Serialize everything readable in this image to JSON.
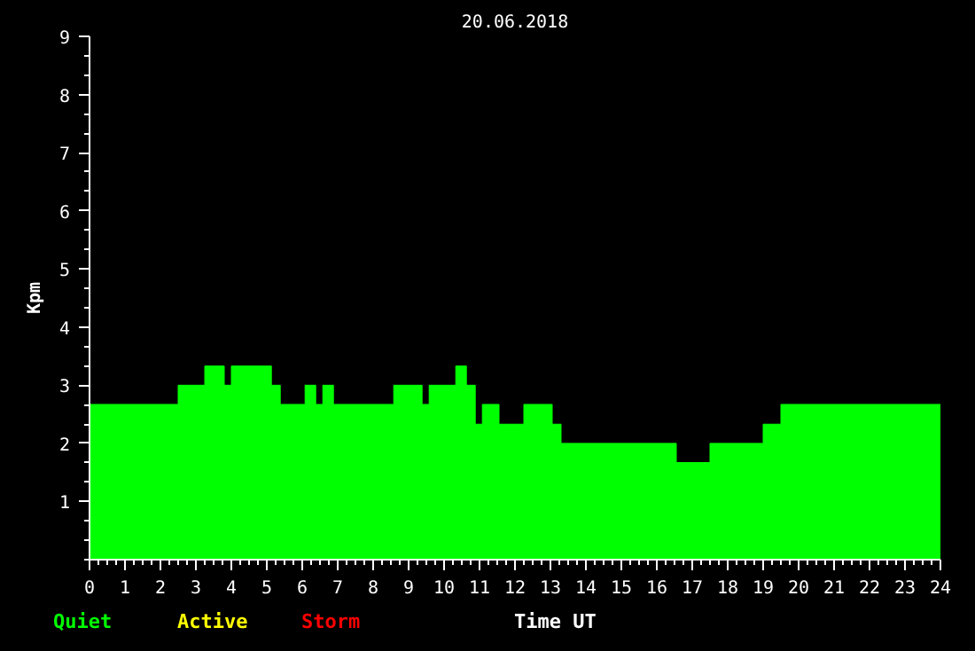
{
  "chart_data": {
    "type": "area",
    "title": "20.06.2018",
    "xlabel": "Time UT",
    "ylabel": "Kpm",
    "xlim": [
      0,
      24
    ],
    "xticks": [
      0,
      1,
      2,
      3,
      4,
      5,
      6,
      7,
      8,
      9,
      10,
      11,
      12,
      13,
      14,
      15,
      16,
      17,
      18,
      19,
      20,
      21,
      22,
      23,
      24
    ],
    "ylim": [
      0,
      9
    ],
    "yticks": [
      1,
      2,
      3,
      4,
      5,
      6,
      7,
      8,
      9
    ],
    "grid": false,
    "series": [
      {
        "name": "Quiet",
        "color": "#00ff00",
        "x": [
          0,
          2.5,
          2.5,
          3.25,
          3.25,
          3.8,
          3.8,
          4.0,
          4.0,
          5.13,
          5.13,
          5.38,
          5.38,
          6.08,
          6.08,
          6.38,
          6.38,
          6.58,
          6.58,
          6.88,
          6.88,
          8.58,
          8.58,
          9.38,
          9.38,
          9.58,
          9.58,
          10.33,
          10.33,
          10.63,
          10.63,
          10.88,
          10.88,
          11.08,
          11.08,
          11.55,
          11.55,
          12.25,
          12.25,
          13.05,
          13.05,
          13.3,
          13.3,
          16.55,
          16.55,
          17.5,
          17.5,
          19.0,
          19.0,
          19.5,
          19.5,
          24
        ],
        "values": [
          2.67,
          2.67,
          3,
          3,
          3.33,
          3.33,
          3,
          3,
          3.33,
          3.33,
          3,
          3,
          2.67,
          2.67,
          3,
          3,
          2.67,
          2.67,
          3,
          3,
          2.67,
          2.67,
          3,
          3,
          2.67,
          2.67,
          3,
          3,
          3.33,
          3.33,
          3,
          3,
          2.33,
          2.33,
          2.67,
          2.67,
          2.33,
          2.33,
          2.67,
          2.67,
          2.33,
          2.33,
          2,
          2,
          1.67,
          1.67,
          2,
          2,
          2.33,
          2.33,
          2.67,
          2.67
        ]
      },
      {
        "name": "Active",
        "color": "#ffff00"
      },
      {
        "name": "Storm",
        "color": "#ff0000"
      }
    ]
  }
}
